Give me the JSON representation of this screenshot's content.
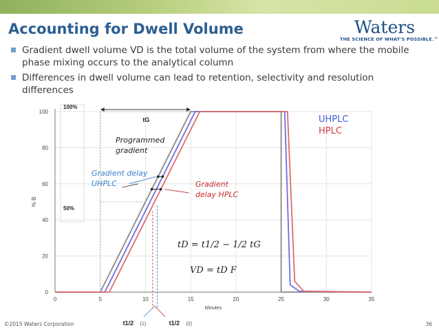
{
  "header": {
    "title": "Accounting for Dwell Volume",
    "logo_name": "Waters",
    "logo_tagline": "THE SCIENCE OF WHAT'S POSSIBLE.™"
  },
  "bullets": [
    "Gradient dwell volume VD is the total volume of the system from where the mobile phase mixing occurs to the analytical column",
    "Differences in dwell volume can lead to retention, selectivity and resolution differences"
  ],
  "chart_data": {
    "type": "line",
    "xlabel": "Minutes",
    "ylabel": "% B",
    "xlim": [
      0,
      35
    ],
    "ylim": [
      0,
      100
    ],
    "x_ticks": [
      "0",
      "5",
      "10",
      "15",
      "20",
      "25",
      "30",
      "35"
    ],
    "y_ticks": [
      "0",
      "20",
      "40",
      "60",
      "80",
      "100"
    ],
    "series": [
      {
        "name": "",
        "color": "#888888",
        "points": [
          [
            0,
            0
          ],
          [
            5,
            0
          ],
          [
            15,
            100
          ],
          [
            25,
            100
          ],
          [
            25,
            0
          ],
          [
            35,
            0
          ]
        ]
      },
      {
        "name": "UHPLC",
        "color": "#6b6fe0",
        "points": [
          [
            0,
            0
          ],
          [
            5.5,
            0
          ],
          [
            15.5,
            100
          ],
          [
            25.4,
            100
          ],
          [
            26,
            4
          ],
          [
            27,
            0.5
          ],
          [
            35,
            0
          ]
        ]
      },
      {
        "name": "HPLC",
        "color": "#e06a6a",
        "points": [
          [
            0,
            0
          ],
          [
            6,
            0
          ],
          [
            16,
            100
          ],
          [
            25.7,
            100
          ],
          [
            26.5,
            6
          ],
          [
            27.5,
            0.5
          ],
          [
            35,
            0
          ]
        ]
      }
    ],
    "annotations": {
      "pct100": "100%",
      "pct50": "50%",
      "tG": "tG",
      "programmed": "Programmed gradient",
      "gd_uhplc": "Gradient delay UHPLC",
      "gd_hplc": "Gradient delay HPLC",
      "t12_1": "t1/2",
      "t12_1_suffix": "(1)",
      "t12_2": "t1/2",
      "t12_2_suffix": "(2)",
      "eq1": "tD = t1/2 − 1/2 tG",
      "eq2": "VD = tD F"
    },
    "legend": [
      "UHPLC",
      "HPLC"
    ],
    "legend_position": "top-right"
  },
  "footer": {
    "copyright": "©2015 Waters Corporation",
    "page": "36"
  }
}
